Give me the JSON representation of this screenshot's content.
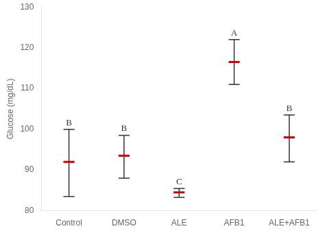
{
  "chart_data": {
    "type": "errorbar",
    "ylabel": "Glucose (mg/dL)",
    "categories": [
      "Control",
      "DMSO",
      "ALE",
      "AFB1",
      "ALE+AFB1"
    ],
    "values": [
      92.0,
      93.5,
      84.5,
      116.5,
      98.0
    ],
    "error_upper": [
      8.0,
      5.0,
      1.0,
      5.5,
      5.5
    ],
    "error_lower": [
      8.5,
      5.5,
      1.2,
      5.5,
      6.0
    ],
    "annotations": [
      "B",
      "B",
      "C",
      "A",
      "B"
    ],
    "color": "#cc0000",
    "ylim": [
      80,
      130
    ],
    "yticks": [
      80,
      90,
      100,
      110,
      120,
      130
    ],
    "grid": false
  }
}
